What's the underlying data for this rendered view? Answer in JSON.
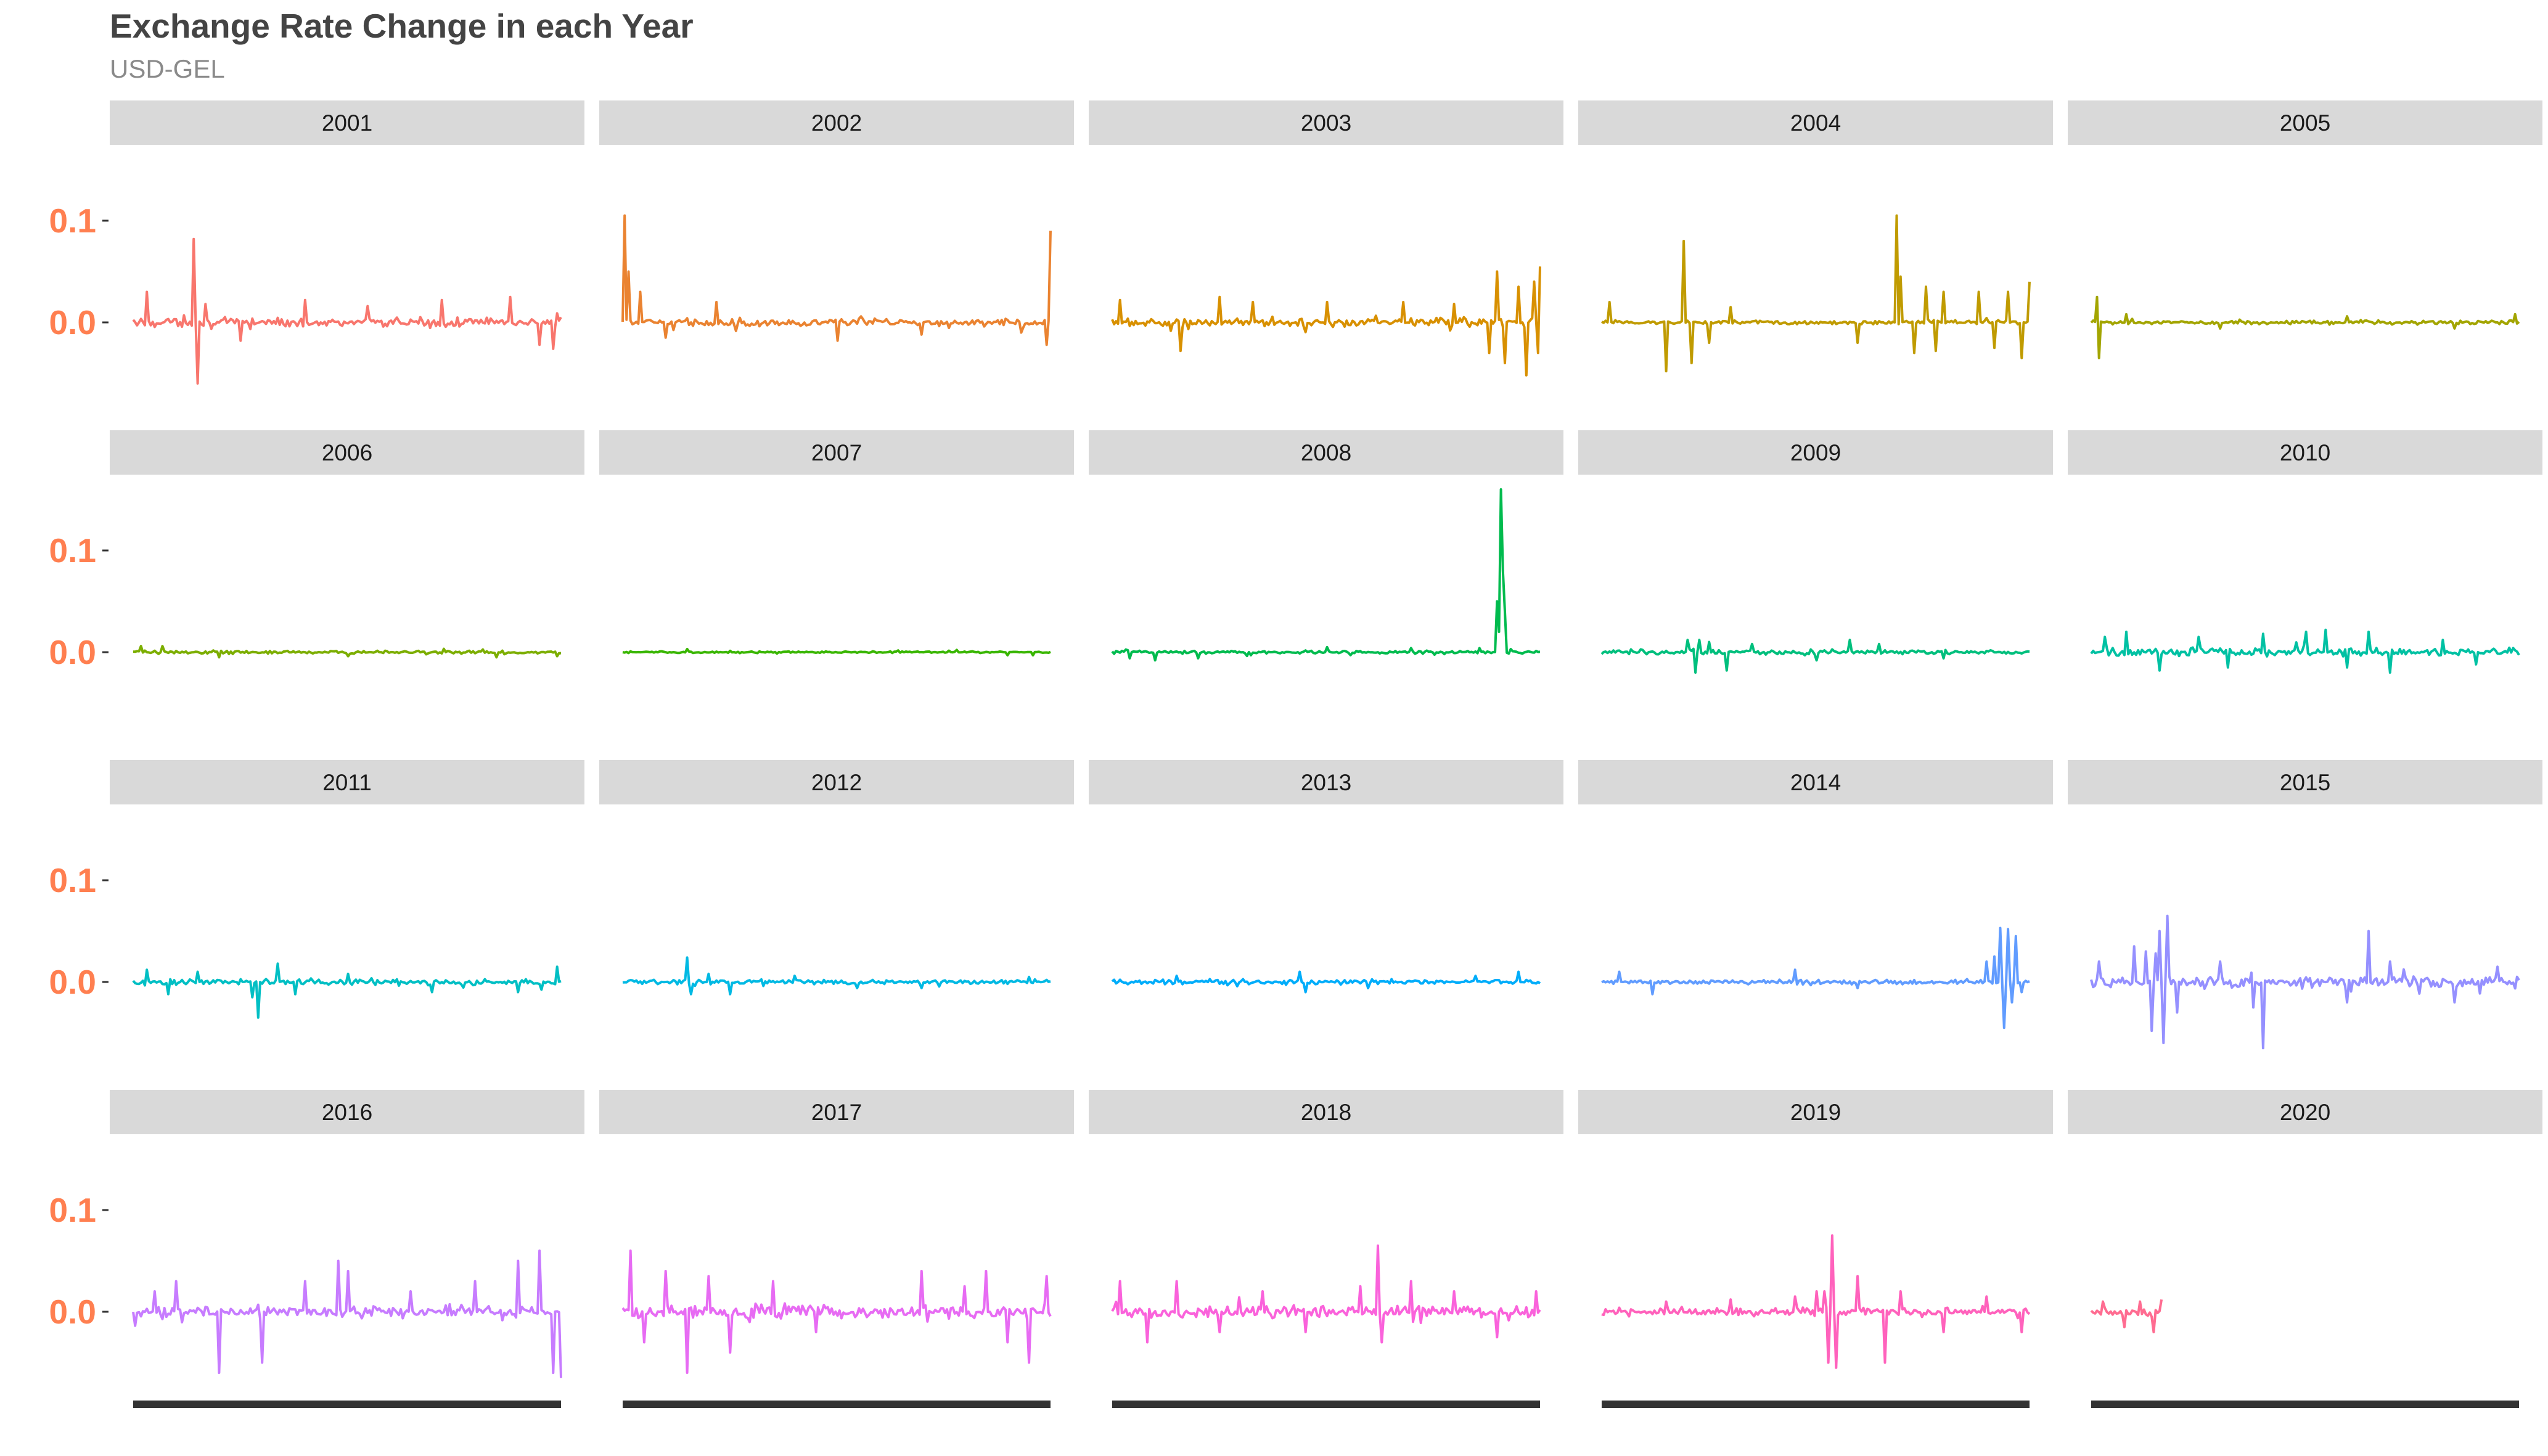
{
  "title": "Exchange Rate Change in each Year",
  "subtitle": "USD-GEL",
  "chart_data": {
    "type": "line",
    "layout": "faceted small multiples, 4 rows x 5 columns",
    "title": "Exchange Rate Change in each Year",
    "subtitle": "USD-GEL",
    "xlabel": "",
    "ylabel": "",
    "x_domain": [
      0,
      1
    ],
    "ylim": [
      -0.08,
      0.16
    ],
    "yticks": [
      0.1,
      0.0
    ],
    "ytick_labels": [
      "0.1",
      "0.0"
    ],
    "grid": false,
    "legend": "none",
    "strip_background": "#d9d9d9",
    "tick_label_color": "#ff7f50",
    "x_axis_bar_color": "#333333",
    "series": [
      {
        "name": "2001",
        "color": "#F8766D",
        "x_end": 1.0,
        "noise": 0.006,
        "baseline": 0.0,
        "spikes": [
          [
            0.03,
            0.03
          ],
          [
            0.14,
            0.082
          ],
          [
            0.15,
            -0.06
          ],
          [
            0.17,
            0.018
          ],
          [
            0.25,
            -0.018
          ],
          [
            0.4,
            0.022
          ],
          [
            0.55,
            0.016
          ],
          [
            0.72,
            0.022
          ],
          [
            0.88,
            0.025
          ],
          [
            0.95,
            -0.022
          ],
          [
            0.98,
            -0.026
          ]
        ]
      },
      {
        "name": "2002",
        "color": "#EA8331",
        "x_end": 1.0,
        "noise": 0.005,
        "baseline": 0.0,
        "spikes": [
          [
            0.005,
            0.105
          ],
          [
            0.015,
            0.05
          ],
          [
            0.04,
            0.03
          ],
          [
            0.1,
            -0.015
          ],
          [
            0.22,
            0.02
          ],
          [
            0.5,
            -0.018
          ],
          [
            0.7,
            -0.012
          ],
          [
            0.93,
            -0.01
          ],
          [
            0.99,
            -0.022
          ],
          [
            1.0,
            0.09
          ]
        ]
      },
      {
        "name": "2003",
        "color": "#D89000",
        "x_end": 1.0,
        "noise": 0.006,
        "baseline": 0.0,
        "spikes": [
          [
            0.02,
            0.022
          ],
          [
            0.16,
            -0.028
          ],
          [
            0.25,
            0.025
          ],
          [
            0.33,
            0.02
          ],
          [
            0.5,
            0.02
          ],
          [
            0.68,
            0.02
          ],
          [
            0.8,
            0.018
          ],
          [
            0.88,
            -0.03
          ],
          [
            0.9,
            0.05
          ],
          [
            0.92,
            -0.04
          ],
          [
            0.95,
            0.035
          ],
          [
            0.97,
            -0.052
          ],
          [
            0.985,
            0.04
          ],
          [
            0.995,
            -0.03
          ],
          [
            1.0,
            0.055
          ]
        ]
      },
      {
        "name": "2004",
        "color": "#C09B00",
        "x_end": 1.0,
        "noise": 0.003,
        "baseline": 0.0,
        "spikes": [
          [
            0.02,
            0.02
          ],
          [
            0.15,
            -0.048
          ],
          [
            0.19,
            0.08
          ],
          [
            0.21,
            -0.04
          ],
          [
            0.25,
            -0.02
          ],
          [
            0.3,
            0.015
          ],
          [
            0.6,
            -0.02
          ],
          [
            0.69,
            0.105
          ],
          [
            0.7,
            0.045
          ],
          [
            0.73,
            -0.03
          ],
          [
            0.76,
            0.035
          ],
          [
            0.78,
            -0.028
          ],
          [
            0.8,
            0.03
          ],
          [
            0.88,
            0.03
          ],
          [
            0.92,
            -0.025
          ],
          [
            0.95,
            0.03
          ],
          [
            0.98,
            -0.035
          ],
          [
            1.0,
            0.04
          ]
        ]
      },
      {
        "name": "2005",
        "color": "#A3A500",
        "x_end": 1.0,
        "noise": 0.0025,
        "baseline": 0.0,
        "spikes": [
          [
            0.015,
            0.025
          ],
          [
            0.02,
            -0.035
          ],
          [
            0.08,
            0.008
          ],
          [
            0.3,
            -0.006
          ],
          [
            0.6,
            0.006
          ],
          [
            0.85,
            -0.006
          ],
          [
            0.99,
            0.008
          ]
        ]
      },
      {
        "name": "2006",
        "color": "#7CAE00",
        "x_end": 1.0,
        "noise": 0.002,
        "baseline": 0.0,
        "spikes": [
          [
            0.02,
            0.006
          ],
          [
            0.07,
            0.006
          ],
          [
            0.2,
            -0.005
          ],
          [
            0.5,
            -0.004
          ],
          [
            0.85,
            -0.005
          ],
          [
            0.99,
            -0.004
          ]
        ]
      },
      {
        "name": "2007",
        "color": "#39B600",
        "x_end": 1.0,
        "noise": 0.0012,
        "baseline": 0.0,
        "spikes": [
          [
            0.15,
            0.003
          ],
          [
            0.9,
            -0.003
          ],
          [
            0.96,
            -0.003
          ]
        ]
      },
      {
        "name": "2008",
        "color": "#00BB4E",
        "x_end": 1.0,
        "noise": 0.002,
        "baseline": 0.0,
        "spikes": [
          [
            0.04,
            -0.006
          ],
          [
            0.1,
            -0.008
          ],
          [
            0.2,
            -0.006
          ],
          [
            0.5,
            0.005
          ],
          [
            0.7,
            0.004
          ],
          [
            0.86,
            0.004
          ],
          [
            0.9,
            0.05
          ],
          [
            0.905,
            0.02
          ],
          [
            0.91,
            0.16
          ],
          [
            0.915,
            0.08
          ],
          [
            0.92,
            0.04
          ],
          [
            0.93,
            0.003
          ]
        ]
      },
      {
        "name": "2009",
        "color": "#00BF7D",
        "x_end": 1.0,
        "noise": 0.003,
        "baseline": 0.0,
        "spikes": [
          [
            0.2,
            0.012
          ],
          [
            0.22,
            -0.02
          ],
          [
            0.23,
            0.012
          ],
          [
            0.25,
            0.01
          ],
          [
            0.29,
            -0.018
          ],
          [
            0.35,
            0.008
          ],
          [
            0.5,
            -0.008
          ],
          [
            0.58,
            0.012
          ],
          [
            0.65,
            0.008
          ],
          [
            0.8,
            -0.006
          ]
        ]
      },
      {
        "name": "2010",
        "color": "#00C1A3",
        "x_end": 1.0,
        "noise": 0.006,
        "baseline": 0.0,
        "spikes": [
          [
            0.03,
            0.015
          ],
          [
            0.08,
            0.02
          ],
          [
            0.16,
            -0.018
          ],
          [
            0.25,
            0.015
          ],
          [
            0.32,
            -0.015
          ],
          [
            0.4,
            0.018
          ],
          [
            0.5,
            0.02
          ],
          [
            0.55,
            0.022
          ],
          [
            0.6,
            -0.015
          ],
          [
            0.65,
            0.02
          ],
          [
            0.7,
            -0.02
          ],
          [
            0.82,
            0.012
          ],
          [
            0.9,
            -0.012
          ]
        ]
      },
      {
        "name": "2011",
        "color": "#00BFC4",
        "x_end": 1.0,
        "noise": 0.004,
        "baseline": 0.0,
        "spikes": [
          [
            0.03,
            0.012
          ],
          [
            0.08,
            -0.012
          ],
          [
            0.15,
            0.01
          ],
          [
            0.28,
            -0.015
          ],
          [
            0.29,
            -0.035
          ],
          [
            0.34,
            0.018
          ],
          [
            0.38,
            -0.012
          ],
          [
            0.5,
            0.008
          ],
          [
            0.7,
            -0.01
          ],
          [
            0.9,
            -0.01
          ],
          [
            0.99,
            0.015
          ]
        ]
      },
      {
        "name": "2012",
        "color": "#00B9E3",
        "x_end": 1.0,
        "noise": 0.003,
        "baseline": 0.0,
        "spikes": [
          [
            0.15,
            0.024
          ],
          [
            0.16,
            -0.012
          ],
          [
            0.2,
            0.008
          ],
          [
            0.25,
            -0.012
          ],
          [
            0.4,
            0.006
          ],
          [
            0.55,
            -0.006
          ],
          [
            0.7,
            -0.006
          ],
          [
            0.95,
            0.005
          ]
        ]
      },
      {
        "name": "2013",
        "color": "#00ADFA",
        "x_end": 1.0,
        "noise": 0.003,
        "baseline": 0.0,
        "spikes": [
          [
            0.15,
            0.006
          ],
          [
            0.44,
            0.01
          ],
          [
            0.45,
            -0.01
          ],
          [
            0.6,
            -0.006
          ],
          [
            0.85,
            0.006
          ],
          [
            0.95,
            0.01
          ]
        ]
      },
      {
        "name": "2014",
        "color": "#619CFF",
        "x_end": 1.0,
        "noise": 0.003,
        "baseline": 0.0,
        "spikes": [
          [
            0.04,
            0.01
          ],
          [
            0.12,
            -0.012
          ],
          [
            0.45,
            0.012
          ],
          [
            0.6,
            -0.006
          ],
          [
            0.9,
            0.02
          ],
          [
            0.92,
            0.025
          ],
          [
            0.93,
            0.053
          ],
          [
            0.94,
            -0.045
          ],
          [
            0.95,
            0.052
          ],
          [
            0.96,
            -0.02
          ],
          [
            0.97,
            0.045
          ],
          [
            0.98,
            -0.01
          ]
        ]
      },
      {
        "name": "2015",
        "color": "#9590FF",
        "x_end": 1.0,
        "noise": 0.008,
        "baseline": 0.0,
        "spikes": [
          [
            0.02,
            0.02
          ],
          [
            0.1,
            0.035
          ],
          [
            0.13,
            0.03
          ],
          [
            0.14,
            -0.048
          ],
          [
            0.15,
            0.028
          ],
          [
            0.16,
            0.05
          ],
          [
            0.17,
            -0.06
          ],
          [
            0.18,
            0.065
          ],
          [
            0.2,
            -0.03
          ],
          [
            0.3,
            0.02
          ],
          [
            0.38,
            -0.025
          ],
          [
            0.4,
            -0.065
          ],
          [
            0.6,
            -0.02
          ],
          [
            0.65,
            0.05
          ],
          [
            0.7,
            0.02
          ],
          [
            0.85,
            -0.02
          ],
          [
            0.95,
            0.015
          ]
        ]
      },
      {
        "name": "2016",
        "color": "#C77CFF",
        "x_end": 1.0,
        "noise": 0.008,
        "baseline": 0.0,
        "spikes": [
          [
            0.05,
            0.02
          ],
          [
            0.1,
            0.03
          ],
          [
            0.2,
            -0.06
          ],
          [
            0.3,
            -0.05
          ],
          [
            0.4,
            0.03
          ],
          [
            0.48,
            0.05
          ],
          [
            0.5,
            0.04
          ],
          [
            0.65,
            0.02
          ],
          [
            0.8,
            0.03
          ],
          [
            0.9,
            0.05
          ],
          [
            0.95,
            0.06
          ],
          [
            0.98,
            -0.06
          ],
          [
            1.0,
            -0.065
          ]
        ]
      },
      {
        "name": "2017",
        "color": "#E76BF3",
        "x_end": 1.0,
        "noise": 0.01,
        "baseline": 0.0,
        "spikes": [
          [
            0.02,
            0.06
          ],
          [
            0.05,
            -0.03
          ],
          [
            0.1,
            0.04
          ],
          [
            0.15,
            -0.06
          ],
          [
            0.2,
            0.035
          ],
          [
            0.25,
            -0.04
          ],
          [
            0.35,
            0.03
          ],
          [
            0.45,
            -0.02
          ],
          [
            0.7,
            0.04
          ],
          [
            0.8,
            0.025
          ],
          [
            0.85,
            0.04
          ],
          [
            0.9,
            -0.03
          ],
          [
            0.95,
            -0.05
          ],
          [
            0.99,
            0.035
          ]
        ]
      },
      {
        "name": "2018",
        "color": "#FA62DB",
        "x_end": 1.0,
        "noise": 0.008,
        "baseline": 0.0,
        "spikes": [
          [
            0.02,
            0.03
          ],
          [
            0.08,
            -0.03
          ],
          [
            0.15,
            0.03
          ],
          [
            0.25,
            -0.02
          ],
          [
            0.35,
            0.02
          ],
          [
            0.45,
            -0.02
          ],
          [
            0.58,
            0.025
          ],
          [
            0.62,
            0.065
          ],
          [
            0.63,
            -0.03
          ],
          [
            0.7,
            0.03
          ],
          [
            0.8,
            0.02
          ],
          [
            0.9,
            -0.025
          ],
          [
            0.99,
            0.02
          ]
        ]
      },
      {
        "name": "2019",
        "color": "#FF62BC",
        "x_end": 1.0,
        "noise": 0.005,
        "baseline": 0.0,
        "spikes": [
          [
            0.15,
            0.01
          ],
          [
            0.3,
            0.012
          ],
          [
            0.45,
            0.015
          ],
          [
            0.5,
            0.02
          ],
          [
            0.52,
            0.02
          ],
          [
            0.53,
            -0.05
          ],
          [
            0.54,
            0.075
          ],
          [
            0.55,
            -0.055
          ],
          [
            0.6,
            0.035
          ],
          [
            0.66,
            -0.05
          ],
          [
            0.7,
            0.02
          ],
          [
            0.8,
            -0.02
          ],
          [
            0.9,
            0.015
          ],
          [
            0.98,
            -0.02
          ]
        ]
      },
      {
        "name": "2020",
        "color": "#FF6C91",
        "x_end": 0.17,
        "noise": 0.007,
        "baseline": 0.0,
        "spikes": [
          [
            0.03,
            0.01
          ],
          [
            0.08,
            -0.015
          ],
          [
            0.12,
            0.01
          ],
          [
            0.15,
            -0.02
          ],
          [
            0.17,
            0.012
          ]
        ]
      }
    ]
  }
}
